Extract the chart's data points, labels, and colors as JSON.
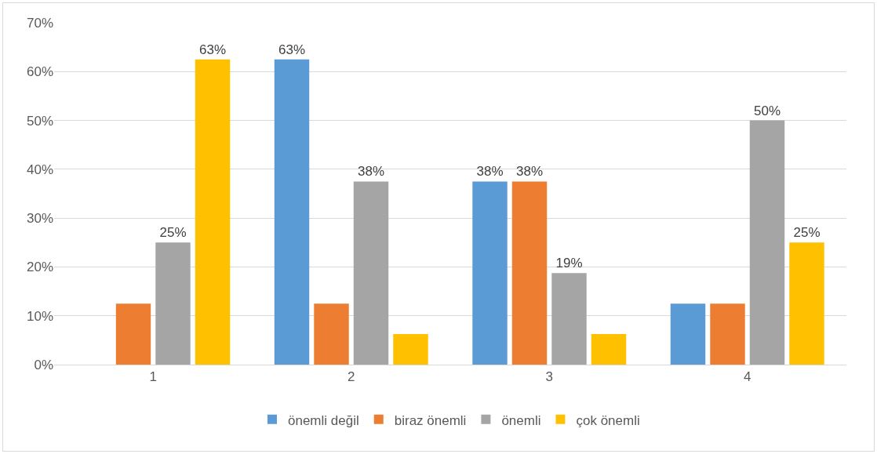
{
  "chart_data": {
    "type": "bar",
    "categories": [
      "1",
      "2",
      "3",
      "4"
    ],
    "series": [
      {
        "name": "önemli değil",
        "color": "#5b9bd5",
        "values": [
          0,
          62.5,
          37.5,
          12.5
        ],
        "value_labels": [
          null,
          "63%",
          "38%",
          null
        ]
      },
      {
        "name": "biraz önemli",
        "color": "#ed7d31",
        "values": [
          12.5,
          12.5,
          37.5,
          12.5
        ],
        "value_labels": [
          null,
          null,
          "38%",
          null
        ]
      },
      {
        "name": "önemli",
        "color": "#a5a5a5",
        "values": [
          25,
          37.5,
          18.75,
          50
        ],
        "value_labels": [
          "25%",
          "38%",
          "19%",
          "50%"
        ]
      },
      {
        "name": "çok önemli",
        "color": "#ffc000",
        "values": [
          62.5,
          6.25,
          6.25,
          25
        ],
        "value_labels": [
          "63%",
          null,
          null,
          "25%"
        ]
      }
    ],
    "ylim": [
      0,
      70
    ],
    "yticks": [
      {
        "value": 0,
        "label": "0%"
      },
      {
        "value": 10,
        "label": "10%"
      },
      {
        "value": 20,
        "label": "20%"
      },
      {
        "value": 30,
        "label": "30%"
      },
      {
        "value": 40,
        "label": "40%"
      },
      {
        "value": 50,
        "label": "50%"
      },
      {
        "value": 60,
        "label": "60%"
      },
      {
        "value": 70,
        "label": "70%"
      }
    ],
    "grid": "y",
    "legend": "bottom"
  }
}
